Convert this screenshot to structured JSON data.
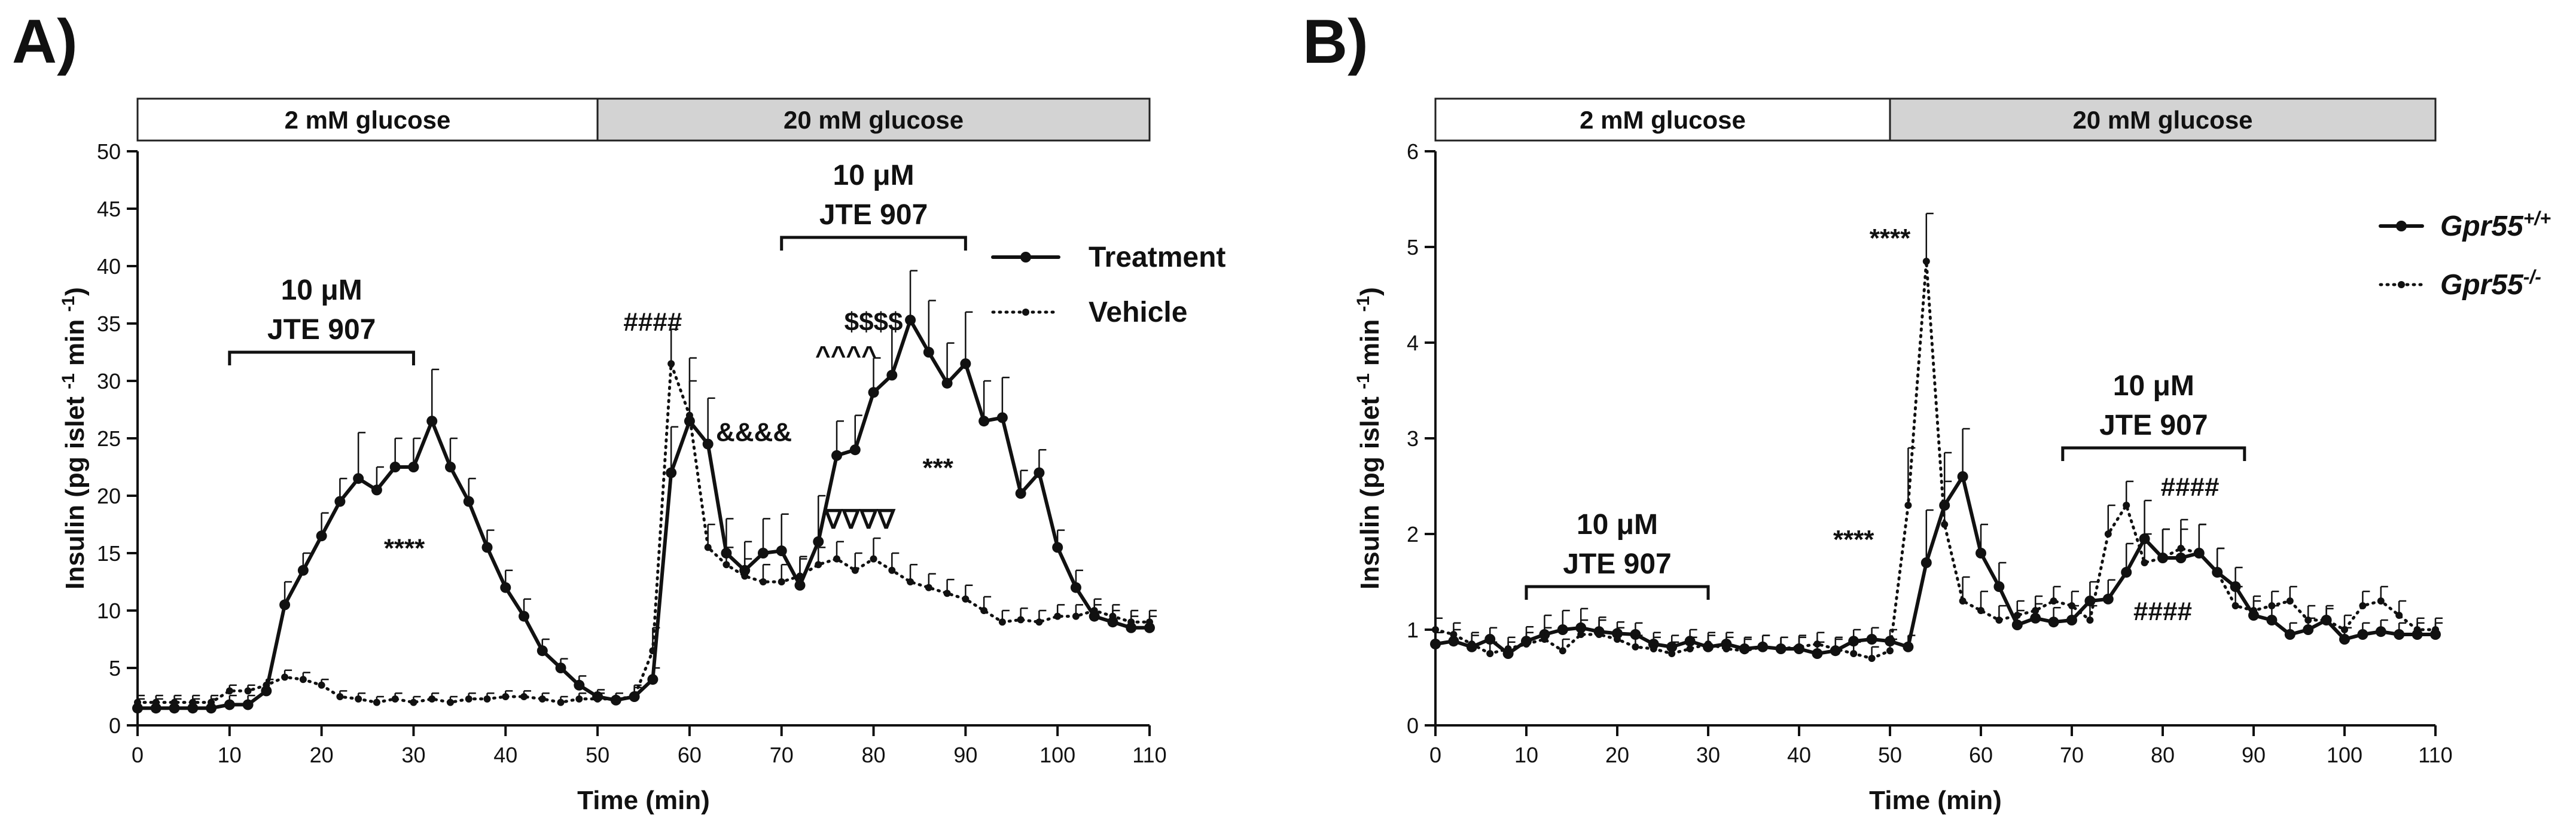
{
  "chart_data": [
    {
      "panel": "A)",
      "type": "line",
      "xlabel": "Time (min)",
      "ylabel": "Insulin (pg islet -1 min -1)",
      "ylabel_parts": {
        "pre": "Insulin (pg islet ",
        "sup1": "-1",
        "mid": " min ",
        "sup2": "-1",
        "post": ")"
      },
      "xlim": [
        0,
        110
      ],
      "ylim": [
        0,
        50
      ],
      "xticks": [
        "0",
        "10",
        "20",
        "30",
        "40",
        "50",
        "60",
        "70",
        "80",
        "90",
        "100",
        "110"
      ],
      "yticks": [
        "0",
        "5",
        "10",
        "15",
        "20",
        "25",
        "30",
        "35",
        "40",
        "45",
        "50"
      ],
      "glucose_bar": [
        {
          "label": "2 mM glucose",
          "x0": 0,
          "x1": 50,
          "fill": "#ffffff"
        },
        {
          "label": "20 mM glucose",
          "x0": 50,
          "x1": 110,
          "fill": "#d3d3d3"
        }
      ],
      "treatment_windows": [
        {
          "line1": "10 μM",
          "line2": "JTE 907",
          "x0": 10,
          "x1": 30,
          "y": 32.5
        },
        {
          "line1": "10 μM",
          "line2": "JTE 907",
          "x0": 70,
          "x1": 90,
          "y": 42.5
        }
      ],
      "legend": [
        {
          "label": "Treatment",
          "style": "solid"
        },
        {
          "label": "Vehicle",
          "style": "dotted"
        }
      ],
      "series": [
        {
          "name": "Treatment",
          "style": "solid",
          "x": [
            0,
            2,
            4,
            6,
            8,
            10,
            12,
            14,
            16,
            18,
            20,
            22,
            24,
            26,
            28,
            30,
            32,
            34,
            36,
            38,
            40,
            42,
            44,
            46,
            48,
            50,
            52,
            54,
            56,
            58,
            60,
            62,
            64,
            66,
            68,
            70,
            72,
            74,
            76,
            78,
            80,
            82,
            84,
            86,
            88,
            90,
            92,
            94,
            96,
            98,
            100,
            102,
            104,
            106,
            108,
            110
          ],
          "values": [
            1.5,
            1.5,
            1.5,
            1.5,
            1.5,
            1.8,
            1.8,
            3.0,
            10.5,
            13.5,
            16.5,
            19.5,
            21.5,
            20.5,
            22.5,
            22.5,
            26.5,
            22.5,
            19.5,
            15.5,
            12.0,
            9.5,
            6.5,
            5.0,
            3.5,
            2.5,
            2.2,
            2.5,
            4.0,
            22.0,
            26.5,
            24.5,
            15.0,
            13.5,
            15.0,
            15.2,
            12.2,
            16.0,
            23.5,
            24.0,
            29.0,
            30.5,
            35.3,
            32.5,
            29.8,
            31.5,
            26.5,
            26.8,
            20.2,
            22.0,
            15.5,
            12.0,
            9.5,
            9.0,
            8.5,
            8.5
          ],
          "errors": [
            0.8,
            0.8,
            0.8,
            0.8,
            0.8,
            0.8,
            0.8,
            1.0,
            2.0,
            1.5,
            2.0,
            2.0,
            4.0,
            2.0,
            2.5,
            2.5,
            4.5,
            2.5,
            2.0,
            1.5,
            1.5,
            1.5,
            1.0,
            0.8,
            0.8,
            0.6,
            0.6,
            0.8,
            1.0,
            4.0,
            5.5,
            4.0,
            3.0,
            2.5,
            3.0,
            3.2,
            2.5,
            4.0,
            3.0,
            3.0,
            3.0,
            4.0,
            4.3,
            4.5,
            3.5,
            4.5,
            3.5,
            3.5,
            2.0,
            2.0,
            1.5,
            1.5,
            1.0,
            1.0,
            1.0,
            1.0
          ]
        },
        {
          "name": "Vehicle",
          "style": "dotted",
          "x": [
            0,
            2,
            4,
            6,
            8,
            10,
            12,
            14,
            16,
            18,
            20,
            22,
            24,
            26,
            28,
            30,
            32,
            34,
            36,
            38,
            40,
            42,
            44,
            46,
            48,
            50,
            52,
            54,
            56,
            58,
            60,
            62,
            64,
            66,
            68,
            70,
            72,
            74,
            76,
            78,
            80,
            82,
            84,
            86,
            88,
            90,
            92,
            94,
            96,
            98,
            100,
            102,
            104,
            106,
            108,
            110
          ],
          "values": [
            2.0,
            2.0,
            2.0,
            2.0,
            2.0,
            3.0,
            3.0,
            3.5,
            4.2,
            4.0,
            3.5,
            2.5,
            2.3,
            2.0,
            2.3,
            2.0,
            2.3,
            2.0,
            2.3,
            2.3,
            2.5,
            2.5,
            2.3,
            2.0,
            2.3,
            2.3,
            2.3,
            2.5,
            6.5,
            31.5,
            27.0,
            15.5,
            14.0,
            13.0,
            12.5,
            12.5,
            13.0,
            14.0,
            14.5,
            13.5,
            14.5,
            13.5,
            12.5,
            12.0,
            11.5,
            11.0,
            10.0,
            9.0,
            9.2,
            9.0,
            9.5,
            9.5,
            10.0,
            9.5,
            9.0,
            9.0
          ],
          "errors": [
            0.6,
            0.6,
            0.6,
            0.6,
            0.6,
            0.5,
            0.5,
            0.5,
            0.6,
            0.6,
            0.5,
            0.5,
            0.5,
            0.5,
            0.5,
            0.5,
            0.5,
            0.5,
            0.5,
            0.5,
            0.5,
            0.5,
            0.5,
            0.5,
            0.5,
            0.5,
            0.5,
            1.0,
            2.0,
            3.0,
            3.0,
            2.0,
            1.5,
            1.5,
            1.5,
            1.5,
            1.5,
            1.5,
            1.5,
            1.5,
            1.8,
            1.5,
            1.5,
            1.2,
            1.2,
            1.2,
            1.2,
            1.0,
            1.0,
            1.0,
            1.0,
            1.0,
            1.0,
            1.0,
            1.0,
            1.0
          ]
        }
      ],
      "annotations": [
        {
          "text": "****",
          "x": 29,
          "y": 15.5
        },
        {
          "text": "####",
          "x": 56,
          "y": 35.2
        },
        {
          "text": "&&&&",
          "x": 67,
          "y": 25.6
        },
        {
          "text": "^^^^",
          "x": 77,
          "y": 32.3
        },
        {
          "text": "$$$$",
          "x": 80,
          "y": 35.2
        },
        {
          "text": "***",
          "x": 87,
          "y": 22.5
        },
        {
          "text": "∇∇∇∇",
          "x": 78.5,
          "y": 18.0
        }
      ]
    },
    {
      "panel": "B)",
      "type": "line",
      "xlabel": "Time (min)",
      "ylabel": "Insulin (pg islet -1 min -1)",
      "ylabel_parts": {
        "pre": "Insulin (pg islet ",
        "sup1": "-1",
        "mid": " min ",
        "sup2": "-1",
        "post": ")"
      },
      "xlim": [
        0,
        110
      ],
      "ylim": [
        0,
        6
      ],
      "xticks": [
        "0",
        "10",
        "20",
        "30",
        "40",
        "50",
        "60",
        "70",
        "80",
        "90",
        "100",
        "110"
      ],
      "yticks": [
        "0",
        "1",
        "2",
        "3",
        "4",
        "5",
        "6"
      ],
      "glucose_bar": [
        {
          "label": "2 mM glucose",
          "x0": 0,
          "x1": 50,
          "fill": "#ffffff"
        },
        {
          "label": "20 mM glucose",
          "x0": 50,
          "x1": 110,
          "fill": "#d3d3d3"
        }
      ],
      "treatment_windows": [
        {
          "line1": "10 μM",
          "line2": "JTE 907",
          "x0": 10,
          "x1": 30,
          "y": 1.45
        },
        {
          "line1": "10 μM",
          "line2": "JTE 907",
          "x0": 69,
          "x1": 89,
          "y": 2.9
        }
      ],
      "legend": [
        {
          "label": "Gpr55",
          "sup": "+/+",
          "style": "solid"
        },
        {
          "label": "Gpr55",
          "sup": "-/-",
          "style": "dotted"
        }
      ],
      "series": [
        {
          "name": "Gpr55+/+",
          "style": "solid",
          "x": [
            0,
            2,
            4,
            6,
            8,
            10,
            12,
            14,
            16,
            18,
            20,
            22,
            24,
            26,
            28,
            30,
            32,
            34,
            36,
            38,
            40,
            42,
            44,
            46,
            48,
            50,
            52,
            54,
            56,
            58,
            60,
            62,
            64,
            66,
            68,
            70,
            72,
            74,
            76,
            78,
            80,
            82,
            84,
            86,
            88,
            90,
            92,
            94,
            96,
            98,
            100,
            102,
            104,
            106,
            108,
            110
          ],
          "values": [
            0.85,
            0.88,
            0.82,
            0.9,
            0.75,
            0.88,
            0.95,
            1.0,
            1.02,
            0.98,
            0.96,
            0.95,
            0.85,
            0.82,
            0.88,
            0.82,
            0.85,
            0.8,
            0.82,
            0.8,
            0.8,
            0.75,
            0.78,
            0.88,
            0.9,
            0.88,
            0.82,
            1.7,
            2.3,
            2.6,
            1.8,
            1.45,
            1.05,
            1.12,
            1.08,
            1.1,
            1.3,
            1.32,
            1.6,
            1.95,
            1.75,
            1.75,
            1.8,
            1.6,
            1.45,
            1.15,
            1.1,
            0.95,
            1.0,
            1.1,
            0.9,
            0.95,
            0.98,
            0.95,
            0.95,
            0.95
          ],
          "errors": [
            0.12,
            0.12,
            0.12,
            0.12,
            0.12,
            0.15,
            0.2,
            0.2,
            0.2,
            0.15,
            0.12,
            0.12,
            0.12,
            0.12,
            0.12,
            0.12,
            0.12,
            0.12,
            0.12,
            0.12,
            0.12,
            0.12,
            0.12,
            0.12,
            0.12,
            0.12,
            0.12,
            0.55,
            0.55,
            0.5,
            0.3,
            0.25,
            0.15,
            0.15,
            0.15,
            0.15,
            0.2,
            0.2,
            0.3,
            0.4,
            0.3,
            0.3,
            0.3,
            0.25,
            0.2,
            0.15,
            0.15,
            0.12,
            0.12,
            0.12,
            0.12,
            0.12,
            0.12,
            0.12,
            0.12,
            0.12
          ]
        },
        {
          "name": "Gpr55-/-",
          "style": "dotted",
          "x": [
            0,
            2,
            4,
            6,
            8,
            10,
            12,
            14,
            16,
            18,
            20,
            22,
            24,
            26,
            28,
            30,
            32,
            34,
            36,
            38,
            40,
            42,
            44,
            46,
            48,
            50,
            52,
            54,
            56,
            58,
            60,
            62,
            64,
            66,
            68,
            70,
            72,
            74,
            76,
            78,
            80,
            82,
            84,
            86,
            88,
            90,
            92,
            94,
            96,
            98,
            100,
            102,
            104,
            106,
            108,
            110
          ],
          "values": [
            1.0,
            0.95,
            0.85,
            0.75,
            0.8,
            0.85,
            0.9,
            0.78,
            0.95,
            0.95,
            0.9,
            0.82,
            0.8,
            0.75,
            0.8,
            0.85,
            0.8,
            0.78,
            0.82,
            0.8,
            0.82,
            0.85,
            0.8,
            0.75,
            0.7,
            0.78,
            2.3,
            4.85,
            2.1,
            1.3,
            1.2,
            1.1,
            1.15,
            1.2,
            1.3,
            1.25,
            1.1,
            2.0,
            2.3,
            1.7,
            1.75,
            1.85,
            1.8,
            1.6,
            1.25,
            1.2,
            1.25,
            1.3,
            1.1,
            1.1,
            1.0,
            1.25,
            1.3,
            1.15,
            1.0,
            1.0
          ],
          "errors": [
            0.12,
            0.12,
            0.12,
            0.12,
            0.12,
            0.12,
            0.12,
            0.12,
            0.15,
            0.15,
            0.12,
            0.12,
            0.12,
            0.12,
            0.12,
            0.12,
            0.12,
            0.12,
            0.12,
            0.12,
            0.12,
            0.12,
            0.12,
            0.12,
            0.12,
            0.12,
            0.6,
            0.5,
            0.45,
            0.25,
            0.2,
            0.15,
            0.15,
            0.15,
            0.15,
            0.15,
            0.15,
            0.3,
            0.25,
            0.3,
            0.3,
            0.3,
            0.3,
            0.25,
            0.2,
            0.15,
            0.15,
            0.15,
            0.15,
            0.15,
            0.15,
            0.15,
            0.15,
            0.15,
            0.12,
            0.12
          ]
        }
      ],
      "annotations": [
        {
          "text": "****",
          "x": 50,
          "y": 5.1
        },
        {
          "text": "****",
          "x": 46,
          "y": 1.95
        },
        {
          "text": "####",
          "x": 83,
          "y": 2.5
        },
        {
          "text": "####",
          "x": 80,
          "y": 1.2
        }
      ]
    }
  ]
}
